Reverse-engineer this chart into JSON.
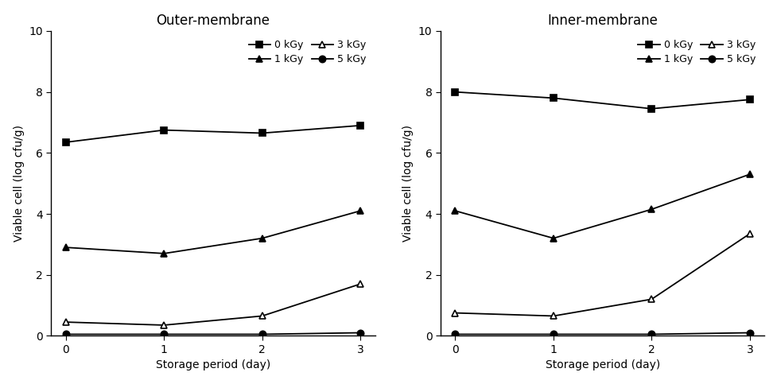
{
  "outer": {
    "title": "Outer-membrane",
    "series": [
      {
        "label": "0 kGy",
        "marker": "s",
        "filled": true,
        "y": [
          6.35,
          6.75,
          6.65,
          6.9
        ]
      },
      {
        "label": "1 kGy",
        "marker": "^",
        "filled": true,
        "y": [
          2.9,
          2.7,
          3.2,
          4.1
        ]
      },
      {
        "label": "3 kGy",
        "marker": "^",
        "filled": false,
        "y": [
          0.45,
          0.35,
          0.65,
          1.7
        ]
      },
      {
        "label": "5 kGy",
        "marker": "o",
        "filled": true,
        "y": [
          0.05,
          0.05,
          0.05,
          0.1
        ]
      }
    ]
  },
  "inner": {
    "title": "Inner-membrane",
    "series": [
      {
        "label": "0 kGy",
        "marker": "s",
        "filled": true,
        "y": [
          8.0,
          7.8,
          7.45,
          7.75
        ]
      },
      {
        "label": "1 kGy",
        "marker": "^",
        "filled": true,
        "y": [
          4.1,
          3.2,
          4.15,
          5.3
        ]
      },
      {
        "label": "3 kGy",
        "marker": "^",
        "filled": false,
        "y": [
          0.75,
          0.65,
          1.2,
          3.35
        ]
      },
      {
        "label": "5 kGy",
        "marker": "o",
        "filled": true,
        "y": [
          0.05,
          0.05,
          0.05,
          0.1
        ]
      }
    ]
  },
  "x": [
    0,
    1,
    2,
    3
  ],
  "xlabel": "Storage period (day)",
  "ylabel": "Viable cell (log cfu/g)",
  "ylim": [
    0,
    10
  ],
  "yticks": [
    0,
    2,
    4,
    6,
    8,
    10
  ],
  "xticks": [
    0,
    1,
    2,
    3
  ],
  "color": "#000000",
  "linewidth": 1.3,
  "markersize": 6,
  "legend_fontsize": 9,
  "title_fontsize": 12,
  "label_fontsize": 10,
  "tick_fontsize": 10
}
